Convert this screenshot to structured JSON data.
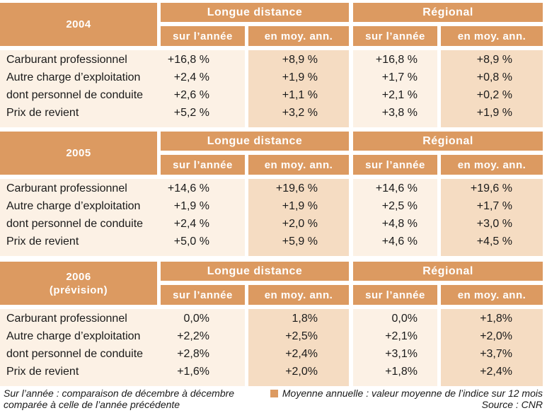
{
  "columns": {
    "groups": [
      "Longue distance",
      "Régional"
    ],
    "sub": [
      "sur l’année",
      "en moy. ann."
    ]
  },
  "row_labels": [
    "Carburant professionnel",
    "Autre charge d’exploitation",
    "dont personnel de conduite",
    "Prix de revient"
  ],
  "blocks": [
    {
      "year": "2004",
      "year_note": "",
      "rows": [
        [
          "+16,8 %",
          "+8,9 %",
          "+16,8 %",
          "+8,9 %"
        ],
        [
          "+2,4 %",
          "+1,9 %",
          "+1,7 %",
          "+0,8 %"
        ],
        [
          "+2,6 %",
          "+1,1 %",
          "+2,1 %",
          "+0,2 %"
        ],
        [
          "+5,2 %",
          "+3,2 %",
          "+3,8 %",
          "+1,9 %"
        ]
      ]
    },
    {
      "year": "2005",
      "year_note": "",
      "rows": [
        [
          "+14,6 %",
          "+19,6 %",
          "+14,6 %",
          "+19,6 %"
        ],
        [
          "+1,9 %",
          "+1,9 %",
          "+2,5 %",
          "+1,7 %"
        ],
        [
          "+2,4 %",
          "+2,0 %",
          "+4,8 %",
          "+3,0 %"
        ],
        [
          "+5,0 %",
          "+5,9 %",
          "+4,6 %",
          "+4,5 %"
        ]
      ]
    },
    {
      "year": "2006",
      "year_note": "(prévision)",
      "rows": [
        [
          "0,0%",
          "1,8%",
          "0,0%",
          "+1,8%"
        ],
        [
          "+2,2%",
          "+2,5%",
          "+2,1%",
          "+2,0%"
        ],
        [
          "+2,8%",
          "+2,4%",
          "+3,1%",
          "+3,7%"
        ],
        [
          "+1,6%",
          "+2,0%",
          "+1,8%",
          "+2,4%"
        ]
      ]
    }
  ],
  "footnotes": {
    "left_line1": "Sur l’année : comparaison de décembre à décembre",
    "left_line2": "comparée à celle de l’année précédente",
    "right_line1": "Moyenne annuelle : valeur moyenne de l’indice sur 12 mois",
    "source": "Source : CNR"
  },
  "colors": {
    "header": "#dc9a61",
    "body_light": "#fcf1e5",
    "body_dark": "#f5dcc2"
  }
}
